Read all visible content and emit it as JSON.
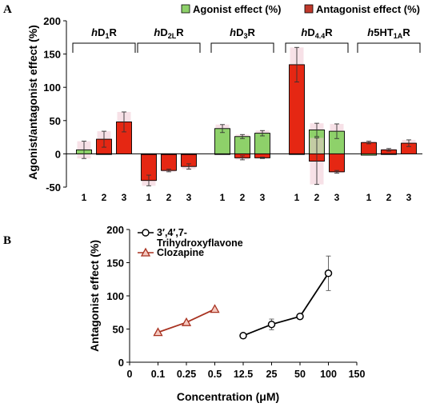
{
  "chart_data": [
    {
      "panel_label": "A",
      "type": "bar",
      "ylabel": "Agonist/antagonist effect (%)",
      "ylim": [
        -50,
        200
      ],
      "yticks": [
        "-50",
        "0",
        "50",
        "100",
        "150",
        "200"
      ],
      "legend": {
        "placement": "top-right",
        "agonist": "Agonist effect (%)",
        "antagonist": "Antagonist effect (%)"
      },
      "colors": {
        "agonist": "#8ed16a",
        "antagonist": "#e52713",
        "error_shade": "#f0c8d4"
      },
      "groups": [
        {
          "label_pre": "h",
          "label_main": "D",
          "label_sub": "1",
          "label_post": "R",
          "categories": [
            "1",
            "2",
            "3"
          ],
          "agonist": [
            6,
            0,
            null
          ],
          "agonist_err": [
            13,
            0,
            null
          ],
          "antagonist": [
            null,
            22,
            48
          ],
          "antagonist_err": [
            null,
            12,
            15
          ]
        },
        {
          "label_pre": "h",
          "label_main": "D",
          "label_sub": "2L",
          "label_post": "R",
          "categories": [
            "1",
            "2",
            "3"
          ],
          "agonist": [
            0,
            0,
            0
          ],
          "agonist_err": [
            0,
            0,
            0
          ],
          "antagonist": [
            -40,
            -25,
            -19
          ],
          "antagonist_err": [
            8,
            2,
            4
          ]
        },
        {
          "label_pre": "h",
          "label_main": "D",
          "label_sub": "3",
          "label_post": "R",
          "categories": [
            "1",
            "2",
            "3"
          ],
          "agonist": [
            38,
            26,
            31
          ],
          "agonist_err": [
            6,
            3,
            4
          ],
          "antagonist": [
            0,
            -6,
            -6
          ],
          "antagonist_err": [
            0,
            3,
            1
          ]
        },
        {
          "label_pre": "h",
          "label_main": "D",
          "label_sub": "4.4",
          "label_post": "R",
          "categories": [
            "1",
            "2",
            "3"
          ],
          "agonist": [
            0,
            36,
            34
          ],
          "agonist_err": [
            0,
            10,
            11
          ],
          "antagonist": [
            134,
            -11,
            -27
          ],
          "antagonist_err": [
            26,
            35,
            2
          ]
        },
        {
          "label_pre": "h",
          "label_main": "5HT",
          "label_sub": "1A",
          "label_post": "R",
          "categories": [
            "1",
            "2",
            "3"
          ],
          "agonist": [
            -2,
            0,
            null
          ],
          "agonist_err": [
            0,
            0,
            null
          ],
          "antagonist": [
            17,
            6,
            16
          ],
          "antagonist_err": [
            2,
            2,
            5
          ]
        }
      ]
    },
    {
      "panel_label": "B",
      "type": "line",
      "xlabel": "Concentration (μM)",
      "ylabel": "Antagonist effect (%)",
      "ylim": [
        0,
        200
      ],
      "yticks": [
        "0",
        "50",
        "100",
        "150",
        "200"
      ],
      "xticks": [
        "0",
        "0.1",
        "0.25",
        "0.5",
        "12.5",
        "25",
        "50",
        "100",
        "150"
      ],
      "legend": {
        "placement": "top-left"
      },
      "series": [
        {
          "name": "3′,4′,7-Trihydroxyflavone",
          "name_line1": "3′,4′,7-",
          "name_line2": "Trihydroxyflavone",
          "marker": "circle",
          "color": "#000000",
          "x": [
            "12.5",
            "25",
            "50",
            "100"
          ],
          "y": [
            40,
            57,
            69,
            134
          ],
          "err": [
            0,
            8,
            0,
            26
          ]
        },
        {
          "name": "Clozapine",
          "marker": "triangle",
          "color": "#a83220",
          "x": [
            "0.1",
            "0.25",
            "0.5"
          ],
          "y": [
            45,
            60,
            80
          ],
          "err": [
            0,
            0,
            0
          ]
        }
      ]
    }
  ]
}
